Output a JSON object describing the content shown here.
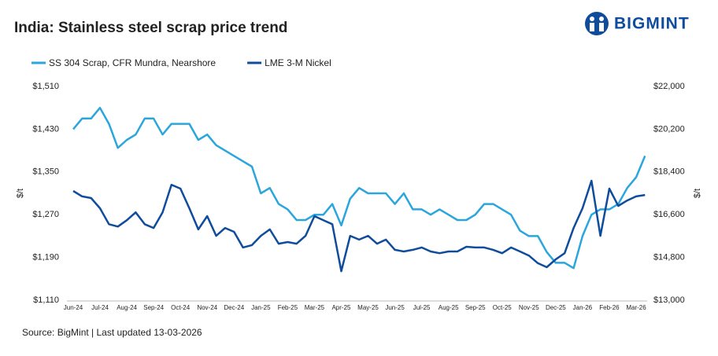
{
  "chart_data": {
    "type": "line",
    "title": "India: Stainless steel scrap price trend",
    "brand": "BIGMINT",
    "source": "Source: BigMint | Last updated 13-03-2026",
    "ylabel": "$/t",
    "y2label": "$/t",
    "categories": [
      "Jun-24",
      null,
      null,
      "Jul-24",
      null,
      null,
      "Aug-24",
      null,
      null,
      "Sep-24",
      null,
      null,
      "Oct-24",
      null,
      null,
      "Nov-24",
      null,
      null,
      "Dec-24",
      null,
      null,
      "Jan-25",
      null,
      null,
      "Feb-25",
      null,
      null,
      "Mar-25",
      null,
      null,
      "Apr-25",
      null,
      null,
      "May-25",
      null,
      null,
      "Jun-25",
      null,
      null,
      "Jul-25",
      null,
      null,
      "Aug-25",
      null,
      null,
      "Sep-25",
      null,
      null,
      "Oct-25",
      null,
      null,
      "Nov-25",
      null,
      null,
      "Dec-25",
      null,
      null,
      "Jan-26",
      null,
      null,
      "Feb-26",
      null,
      null,
      "Mar-26",
      null
    ],
    "series": [
      {
        "name": "SS 304 Scrap, CFR Mundra, Nearshore",
        "color": "#2aa6dd",
        "values": [
          1430,
          1450,
          1450,
          1470,
          1440,
          1395,
          1410,
          1420,
          1450,
          1450,
          1420,
          1440,
          1440,
          1440,
          1410,
          1420,
          1400,
          1390,
          1380,
          1370,
          1360,
          1310,
          1320,
          1290,
          1280,
          1260,
          1260,
          1270,
          1270,
          1290,
          1250,
          1300,
          1320,
          1310,
          1310,
          1310,
          1290,
          1310,
          1280,
          1280,
          1270,
          1280,
          1270,
          1260,
          1260,
          1270,
          1290,
          1290,
          1280,
          1270,
          1240,
          1230,
          1230,
          1200,
          1180,
          1180,
          1170,
          1230,
          1270,
          1280,
          1280,
          1290,
          1320,
          1340,
          1380
        ]
      },
      {
        "name": "LME 3-M Nickel",
        "color": "#0f4c9c",
        "axis": "y2",
        "values": [
          17600,
          17370,
          17300,
          16870,
          16200,
          16100,
          16370,
          16700,
          16200,
          16040,
          16700,
          17860,
          17700,
          16870,
          15980,
          16540,
          15710,
          16040,
          15880,
          15220,
          15320,
          15710,
          15980,
          15380,
          15450,
          15380,
          15710,
          16540,
          16370,
          16200,
          14220,
          15710,
          15550,
          15710,
          15380,
          15550,
          15120,
          15050,
          15120,
          15220,
          15050,
          14980,
          15050,
          15050,
          15250,
          15220,
          15220,
          15120,
          14980,
          15220,
          15050,
          14880,
          14560,
          14390,
          14720,
          14980,
          16040,
          16870,
          18030,
          15710,
          17700,
          16970,
          17200,
          17370,
          17430
        ]
      }
    ],
    "ylim": [
      1110,
      1510
    ],
    "yticks": [
      {
        "value": 1110,
        "label": "$1,110"
      },
      {
        "value": 1190,
        "label": "$1,190"
      },
      {
        "value": 1270,
        "label": "$1,270"
      },
      {
        "value": 1350,
        "label": "$1,350"
      },
      {
        "value": 1430,
        "label": "$1,430"
      },
      {
        "value": 1510,
        "label": "$1,510"
      }
    ],
    "y2lim": [
      13000,
      22000
    ],
    "y2ticks": [
      {
        "value": 13000,
        "label": "$13,000"
      },
      {
        "value": 14800,
        "label": "$14,800"
      },
      {
        "value": 16600,
        "label": "$16,600"
      },
      {
        "value": 18400,
        "label": "$18,400"
      },
      {
        "value": 20200,
        "label": "$20,200"
      },
      {
        "value": 22000,
        "label": "$22,000"
      }
    ],
    "grid": false,
    "legend": "top-left"
  }
}
